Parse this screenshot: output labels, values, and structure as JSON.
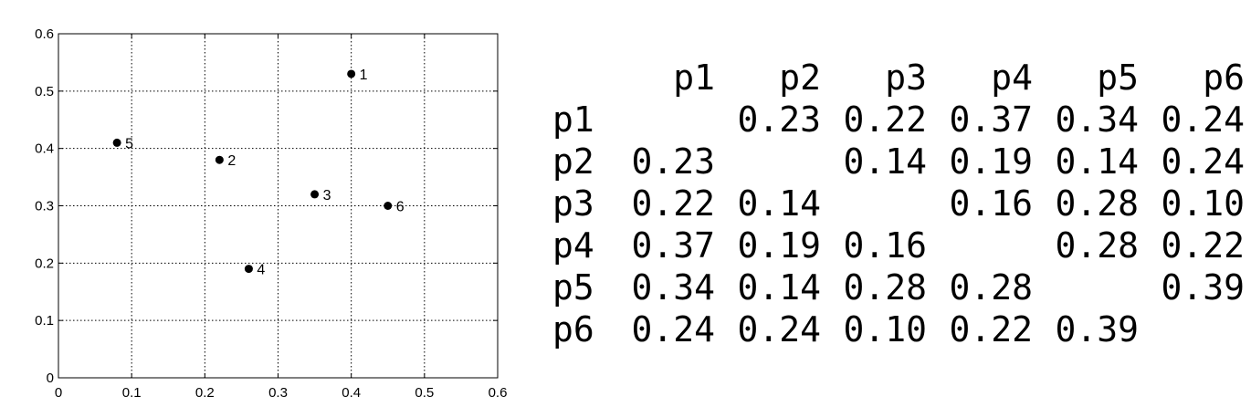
{
  "chart_data": [
    {
      "type": "scatter",
      "title": "",
      "xlabel": "",
      "ylabel": "",
      "xlim": [
        0,
        0.6
      ],
      "ylim": [
        0,
        0.6
      ],
      "grid": true,
      "xticks": [
        "0",
        "0.1",
        "0.2",
        "0.3",
        "0.4",
        "0.5",
        "0.6"
      ],
      "yticks": [
        "0",
        "0.1",
        "0.2",
        "0.3",
        "0.4",
        "0.5",
        "0.6"
      ],
      "points": [
        {
          "label": "1",
          "x": 0.4,
          "y": 0.53
        },
        {
          "label": "2",
          "x": 0.22,
          "y": 0.38
        },
        {
          "label": "3",
          "x": 0.35,
          "y": 0.32
        },
        {
          "label": "4",
          "x": 0.26,
          "y": 0.19
        },
        {
          "label": "5",
          "x": 0.08,
          "y": 0.41
        },
        {
          "label": "6",
          "x": 0.45,
          "y": 0.3
        }
      ]
    },
    {
      "type": "table",
      "columns": [
        "p1",
        "p2",
        "p3",
        "p4",
        "p5",
        "p6"
      ],
      "rows": [
        {
          "label": "p1",
          "values": [
            "",
            "0.23",
            "0.22",
            "0.37",
            "0.34",
            "0.24"
          ]
        },
        {
          "label": "p2",
          "values": [
            "0.23",
            "",
            "0.14",
            "0.19",
            "0.14",
            "0.24"
          ]
        },
        {
          "label": "p3",
          "values": [
            "0.22",
            "0.14",
            "",
            "0.16",
            "0.28",
            "0.10"
          ]
        },
        {
          "label": "p4",
          "values": [
            "0.37",
            "0.19",
            "0.16",
            "",
            "0.28",
            "0.22"
          ]
        },
        {
          "label": "p5",
          "values": [
            "0.34",
            "0.14",
            "0.28",
            "0.28",
            "",
            "0.39"
          ]
        },
        {
          "label": "p6",
          "values": [
            "0.24",
            "0.24",
            "0.10",
            "0.22",
            "0.39",
            ""
          ]
        }
      ]
    }
  ]
}
